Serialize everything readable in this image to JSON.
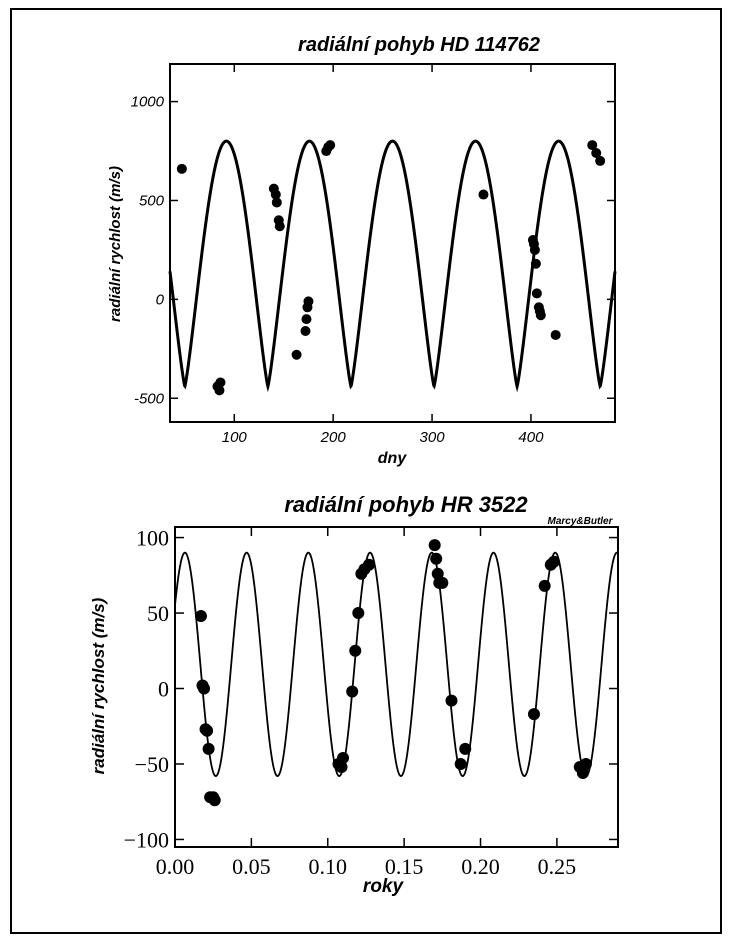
{
  "chart_data": [
    {
      "type": "line",
      "title": "radiální pohyb HD 114762",
      "xlabel": "dny",
      "ylabel": "radiální rychlost  (m/s)",
      "xlim": [
        35,
        485
      ],
      "ylim": [
        -620,
        1190
      ],
      "xticks": [
        100,
        200,
        300,
        400
      ],
      "yticks": [
        -500,
        0,
        500,
        1000
      ],
      "xtick_labels": [
        "100",
        "200",
        "300",
        "400"
      ],
      "ytick_labels": [
        "-500",
        "0",
        "500",
        "1000"
      ],
      "model": {
        "center": 180,
        "amplitude": 620,
        "period": 84,
        "phase_x": 92,
        "eccentricity_shape": 0.6
      },
      "points": {
        "x": [
          47,
          83,
          85,
          86,
          140,
          142,
          143,
          145,
          146,
          163,
          172,
          173,
          174,
          175,
          193,
          195,
          197,
          352,
          402,
          403,
          404,
          405,
          406,
          408,
          409,
          410,
          425,
          462,
          466,
          470
        ],
        "y": [
          660,
          -440,
          -460,
          -420,
          560,
          530,
          490,
          400,
          370,
          -280,
          -160,
          -100,
          -40,
          -10,
          750,
          770,
          780,
          530,
          300,
          280,
          250,
          180,
          30,
          -40,
          -60,
          -80,
          -180,
          780,
          740,
          700
        ]
      }
    },
    {
      "type": "line",
      "title": "radiální pohyb  HR 3522",
      "credit": "Marcy&Butler",
      "xlabel": "roky",
      "ylabel": "radiální rychlost  (m/s)",
      "xlim": [
        0.0,
        0.29
      ],
      "ylim": [
        -105,
        107
      ],
      "xticks": [
        0.0,
        0.05,
        0.1,
        0.15,
        0.2,
        0.25
      ],
      "yticks": [
        -100,
        -50,
        0,
        50,
        100
      ],
      "xtick_labels": [
        "0.00",
        "0.05",
        "0.10",
        "0.15",
        "0.20",
        "0.25"
      ],
      "ytick_labels": [
        "−100",
        "−50",
        "0",
        "50",
        "100"
      ],
      "model": {
        "center": 16,
        "amplitude": 74,
        "period": 0.0404,
        "phase_x": 0.0065
      },
      "points": {
        "x": [
          0.017,
          0.018,
          0.019,
          0.02,
          0.021,
          0.022,
          0.023,
          0.025,
          0.026,
          0.107,
          0.109,
          0.11,
          0.116,
          0.118,
          0.12,
          0.122,
          0.124,
          0.127,
          0.17,
          0.171,
          0.172,
          0.173,
          0.175,
          0.181,
          0.187,
          0.19,
          0.235,
          0.242,
          0.246,
          0.248,
          0.265,
          0.267,
          0.269
        ],
        "y": [
          48,
          2,
          0,
          -27,
          -28,
          -40,
          -72,
          -72,
          -74,
          -50,
          -52,
          -46,
          -2,
          25,
          50,
          76,
          79,
          82,
          95,
          86,
          76,
          70,
          70,
          -8,
          -50,
          -40,
          -17,
          68,
          82,
          84,
          -52,
          -56,
          -50
        ]
      }
    }
  ]
}
